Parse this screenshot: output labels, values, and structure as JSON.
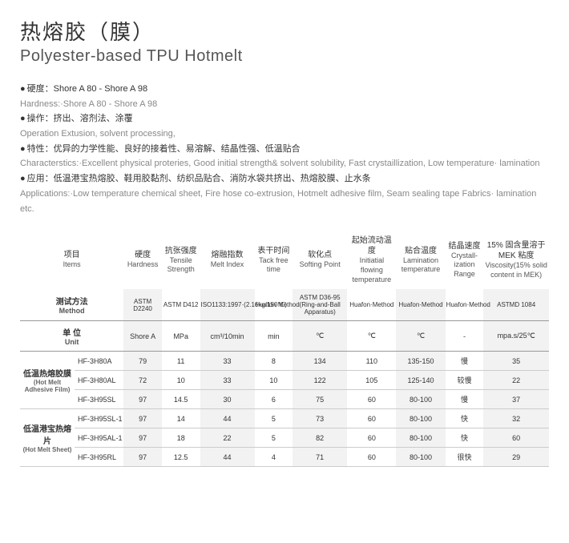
{
  "title": {
    "cn": "热熔胶（膜）",
    "en": "Polyester-based TPU Hotmelt"
  },
  "specs": [
    {
      "cn": "硬度：Shore A 80 - Shore A 98",
      "en": "Hardness:·Shore A 80 - Shore A 98"
    },
    {
      "cn": "操作：挤出、溶剂法、涂覆",
      "en": "Operation Extusion, solvent processing,"
    },
    {
      "cn": "特性：优异的力学性能、良好的接着性、易溶解、结晶性强、低温贴合",
      "en": "Characterstics:·Excellent physical proteries, Good initial strength& solvent solubility, Fast crystaillization, Low temperature· lamination"
    },
    {
      "cn": "应用：低温港宝热熔胶、鞋用胶黏剂、纺织品贴合、消防水袋共挤出、热熔胶膜、止水条",
      "en": "Applications:·Low temperature chemical sheet,  Fire hose co-extrusion, Hotmelt adhesive film, Seam sealing tape Fabrics· lamination etc."
    }
  ],
  "headers": [
    {
      "cn": "项目",
      "en": "Items"
    },
    {
      "cn": "硬度",
      "en": "Hardness"
    },
    {
      "cn": "抗张强度",
      "en": "Tensile Strength"
    },
    {
      "cn": "熔融指数",
      "en": "Melt Index"
    },
    {
      "cn": "表干时间",
      "en": "Tack free time"
    },
    {
      "cn": "软化点",
      "en": "Softing Point"
    },
    {
      "cn": "起始流动温度",
      "en": "Initiatial flowing temperature"
    },
    {
      "cn": "贴合温度",
      "en": "Lamination temperature"
    },
    {
      "cn": "结晶速度",
      "en": "Crystall-ization Range"
    },
    {
      "cn": "15% 固含量溶于MEK 粘度",
      "en": "Viscosity(15% solid content in MEK)"
    }
  ],
  "method": {
    "label_cn": "测试方法",
    "label_en": "Method",
    "vals": [
      "ASTM D2240",
      "ASTM D412",
      "ISO1133:1997·(2.16kg/150℃)",
      "Huafon·Method",
      "ASTM D36-95 (Ring-and-Ball Apparatus)",
      "Huafon·Method",
      "Huafon·Method",
      "Huafon·Method",
      "ASTMD 1084"
    ]
  },
  "unit": {
    "label_cn": "单 位",
    "label_en": "Unit",
    "vals": [
      "Shore A",
      "MPa",
      "cm³/10min",
      "min",
      "℃",
      "℃",
      "℃",
      "-",
      "mpa.s/25℃"
    ]
  },
  "rows": [
    {
      "cat_cn": "低温热熔胶膜",
      "cat_en": "(Hot Melt Adhesive Film)",
      "name": "HF-3H80A",
      "v": [
        "79",
        "11",
        "33",
        "8",
        "134",
        "110",
        "135-150",
        "慢",
        "35"
      ]
    },
    {
      "name": "HF-3H80AL",
      "v": [
        "72",
        "10",
        "33",
        "10",
        "122",
        "105",
        "125-140",
        "较慢",
        "22"
      ]
    },
    {
      "name": "HF-3H95SL",
      "v": [
        "97",
        "14.5",
        "30",
        "6",
        "75",
        "60",
        "80-100",
        "慢",
        "37"
      ]
    },
    {
      "cat_cn": "低温港宝热熔片",
      "cat_en": "(Hot Melt Sheet)",
      "name": "HF-3H95SL-1",
      "v": [
        "97",
        "14",
        "44",
        "5",
        "73",
        "60",
        "80-100",
        "快",
        "32"
      ]
    },
    {
      "name": "HF-3H95AL-1",
      "v": [
        "97",
        "18",
        "22",
        "5",
        "82",
        "60",
        "80-100",
        "快",
        "60"
      ]
    },
    {
      "name": "HF-3H95RL",
      "v": [
        "97",
        "12.5",
        "44",
        "4",
        "71",
        "60",
        "80-100",
        "很快",
        "29"
      ]
    }
  ],
  "grey_cols": [
    1,
    3,
    5,
    7,
    9
  ]
}
